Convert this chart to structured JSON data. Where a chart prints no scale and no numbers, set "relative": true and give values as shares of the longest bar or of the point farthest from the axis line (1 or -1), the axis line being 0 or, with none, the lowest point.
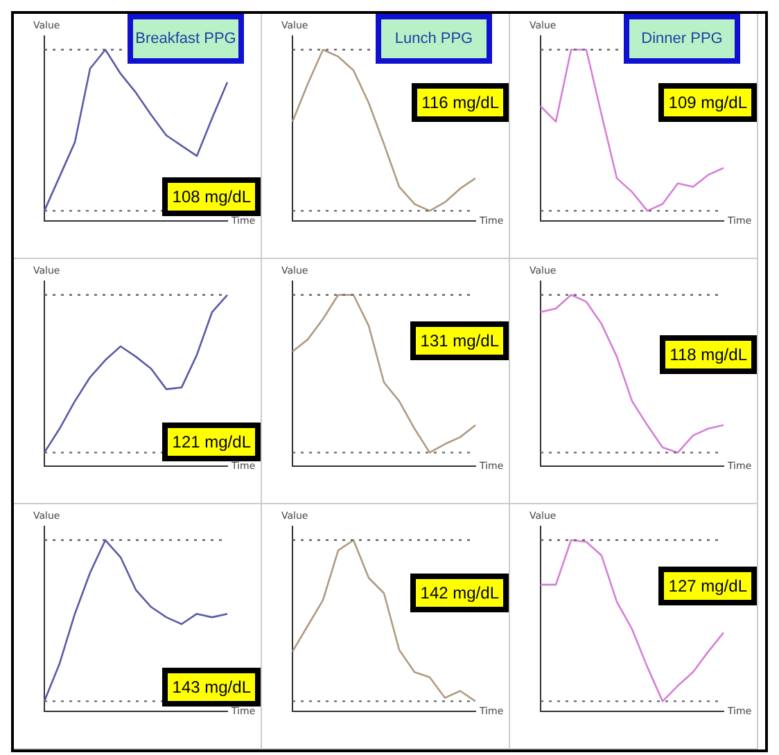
{
  "chart_data": [
    {
      "type": "line",
      "title": "Breakfast PPG",
      "xlabel": "Time",
      "ylabel": "Value",
      "relative": true,
      "categories": [
        null,
        null,
        null,
        null,
        null,
        null,
        null,
        null,
        null,
        null,
        null,
        null,
        null
      ],
      "series": [
        {
          "color": "#5a5aa8",
          "values": [
            0.06,
            0.26,
            0.46,
            0.89,
            1.0,
            0.86,
            0.75,
            0.62,
            0.5,
            0.44,
            0.38,
            0.6,
            0.81
          ]
        }
      ],
      "ref_lines": [
        {
          "axis": "y",
          "value": 1,
          "line_style": "dotted"
        },
        {
          "axis": "y",
          "value": 0.06,
          "line_style": "dotted"
        }
      ],
      "annotations": [
        "108 mg/dL"
      ]
    },
    {
      "type": "line",
      "xlabel": "Time",
      "ylabel": "Value",
      "relative": true,
      "categories": [
        null,
        null,
        null,
        null,
        null,
        null,
        null,
        null,
        null,
        null,
        null,
        null,
        null
      ],
      "series": [
        {
          "color": "#5a5aa8",
          "values": [
            0.08,
            0.22,
            0.38,
            0.52,
            0.62,
            0.7,
            0.64,
            0.57,
            0.45,
            0.46,
            0.65,
            0.9,
            1.0
          ]
        }
      ],
      "ref_lines": [
        {
          "axis": "y",
          "value": 1,
          "line_style": "dotted"
        },
        {
          "axis": "y",
          "value": 0.08,
          "line_style": "dotted"
        }
      ],
      "annotations": [
        "121 mg/dL"
      ]
    },
    {
      "type": "line",
      "xlabel": "Time",
      "ylabel": "Value",
      "relative": true,
      "categories": [
        null,
        null,
        null,
        null,
        null,
        null,
        null,
        null,
        null,
        null,
        null,
        null,
        null
      ],
      "series": [
        {
          "color": "#5a5aa8",
          "values": [
            0.06,
            0.28,
            0.57,
            0.81,
            1.0,
            0.9,
            0.71,
            0.61,
            0.55,
            0.51,
            0.57,
            0.55,
            0.57
          ]
        }
      ],
      "ref_lines": [
        {
          "axis": "y",
          "value": 1,
          "line_style": "dotted"
        },
        {
          "axis": "y",
          "value": 0.06,
          "line_style": "dotted"
        }
      ],
      "annotations": [
        "143 mg/dL"
      ]
    },
    {
      "type": "line",
      "title": "Lunch PPG",
      "xlabel": "Time",
      "ylabel": "Value",
      "relative": true,
      "categories": [
        null,
        null,
        null,
        null,
        null,
        null,
        null,
        null,
        null,
        null,
        null,
        null,
        null
      ],
      "series": [
        {
          "color": "#b09a82",
          "values": [
            0.58,
            0.8,
            1.0,
            0.96,
            0.88,
            0.69,
            0.45,
            0.2,
            0.1,
            0.06,
            0.11,
            0.19,
            0.25
          ]
        }
      ],
      "ref_lines": [
        {
          "axis": "y",
          "value": 1,
          "line_style": "dotted"
        },
        {
          "axis": "y",
          "value": 0.06,
          "line_style": "dotted"
        }
      ],
      "annotations": [
        "116 mg/dL"
      ]
    },
    {
      "type": "line",
      "xlabel": "Time",
      "ylabel": "Value",
      "relative": true,
      "categories": [
        null,
        null,
        null,
        null,
        null,
        null,
        null,
        null,
        null,
        null,
        null,
        null,
        null
      ],
      "series": [
        {
          "color": "#b09a82",
          "values": [
            0.67,
            0.74,
            0.86,
            1.0,
            1.0,
            0.82,
            0.49,
            0.38,
            0.22,
            0.08,
            0.13,
            0.17,
            0.24
          ]
        }
      ],
      "ref_lines": [
        {
          "axis": "y",
          "value": 1,
          "line_style": "dotted"
        },
        {
          "axis": "y",
          "value": 0.08,
          "line_style": "dotted"
        }
      ],
      "annotations": [
        "131 mg/dL"
      ]
    },
    {
      "type": "line",
      "xlabel": "Time",
      "ylabel": "Value",
      "relative": true,
      "categories": [
        null,
        null,
        null,
        null,
        null,
        null,
        null,
        null,
        null,
        null,
        null,
        null,
        null
      ],
      "series": [
        {
          "color": "#b09a82",
          "values": [
            0.35,
            0.5,
            0.65,
            0.94,
            1.0,
            0.78,
            0.69,
            0.36,
            0.23,
            0.2,
            0.08,
            0.12,
            0.06
          ]
        }
      ],
      "ref_lines": [
        {
          "axis": "y",
          "value": 1,
          "line_style": "dotted"
        },
        {
          "axis": "y",
          "value": 0.06,
          "line_style": "dotted"
        }
      ],
      "annotations": [
        "142 mg/dL"
      ]
    },
    {
      "type": "line",
      "title": "Dinner PPG",
      "xlabel": "Time",
      "ylabel": "Value",
      "relative": true,
      "categories": [
        null,
        null,
        null,
        null,
        null,
        null,
        null,
        null,
        null,
        null,
        null,
        null,
        null
      ],
      "series": [
        {
          "color": "#d67fd6",
          "values": [
            0.67,
            0.58,
            1.0,
            1.0,
            0.62,
            0.25,
            0.17,
            0.06,
            0.1,
            0.22,
            0.2,
            0.27,
            0.31
          ]
        }
      ],
      "ref_lines": [
        {
          "axis": "y",
          "value": 1,
          "line_style": "dotted"
        },
        {
          "axis": "y",
          "value": 0.06,
          "line_style": "dotted"
        }
      ],
      "annotations": [
        "109 mg/dL"
      ]
    },
    {
      "type": "line",
      "xlabel": "Time",
      "ylabel": "Value",
      "relative": true,
      "categories": [
        null,
        null,
        null,
        null,
        null,
        null,
        null,
        null,
        null,
        null,
        null,
        null,
        null
      ],
      "series": [
        {
          "color": "#d67fd6",
          "values": [
            0.9,
            0.92,
            1.0,
            0.96,
            0.83,
            0.64,
            0.38,
            0.24,
            0.11,
            0.08,
            0.18,
            0.22,
            0.24
          ]
        }
      ],
      "ref_lines": [
        {
          "axis": "y",
          "value": 1,
          "line_style": "dotted"
        },
        {
          "axis": "y",
          "value": 0.08,
          "line_style": "dotted"
        }
      ],
      "annotations": [
        "118 mg/dL"
      ]
    },
    {
      "type": "line",
      "xlabel": "Time",
      "ylabel": "Value",
      "relative": true,
      "categories": [
        null,
        null,
        null,
        null,
        null,
        null,
        null,
        null,
        null,
        null,
        null,
        null,
        null
      ],
      "series": [
        {
          "color": "#d67fd6",
          "values": [
            0.74,
            0.74,
            1.0,
            0.99,
            0.91,
            0.64,
            0.48,
            0.26,
            0.06,
            0.15,
            0.23,
            0.35,
            0.46
          ]
        }
      ],
      "ref_lines": [
        {
          "axis": "y",
          "value": 1,
          "line_style": "dotted"
        },
        {
          "axis": "y",
          "value": 0.06,
          "line_style": "dotted"
        }
      ],
      "annotations": [
        "127 mg/dL"
      ]
    }
  ]
}
